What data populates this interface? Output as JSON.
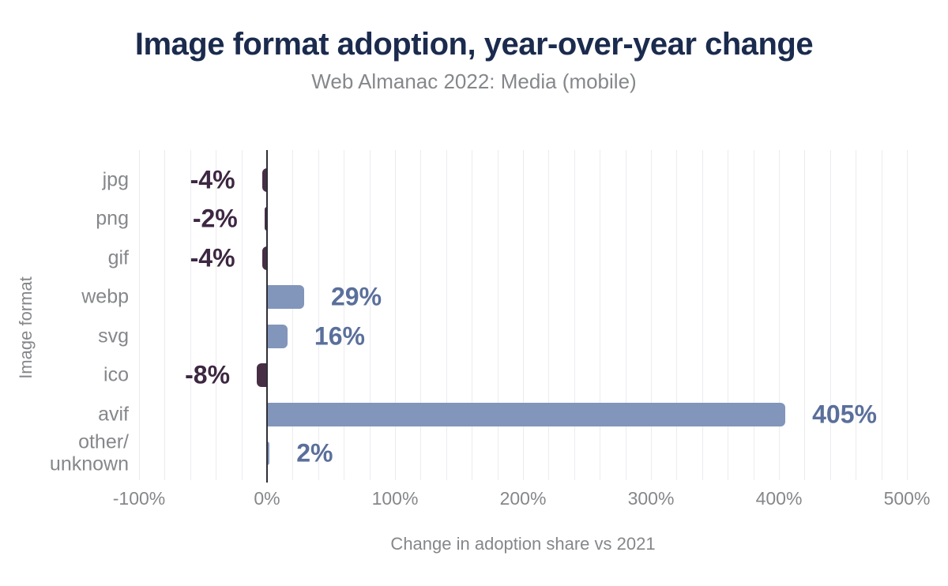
{
  "header": {
    "title": "Image format adoption, year-over-year change",
    "subtitle": "Web Almanac 2022: Media (mobile)"
  },
  "chart_data": {
    "type": "bar",
    "orientation": "horizontal",
    "title": "Image format adoption, year-over-year change",
    "subtitle": "Web Almanac 2022: Media (mobile)",
    "xlabel": "Change in adoption share vs 2021",
    "ylabel": "Image format",
    "categories": [
      "jpg",
      "png",
      "gif",
      "webp",
      "svg",
      "ico",
      "avif",
      "other/unknown"
    ],
    "category_display": [
      "jpg",
      "png",
      "gif",
      "webp",
      "svg",
      "ico",
      "avif",
      "other/\nunknown"
    ],
    "values": [
      -4,
      -2,
      -4,
      29,
      16,
      -8,
      405,
      2
    ],
    "value_labels": [
      "-4%",
      "-2%",
      "-4%",
      "29%",
      "16%",
      "-8%",
      "405%",
      "2%"
    ],
    "xlim": [
      -100,
      500
    ],
    "x_ticks": [
      -100,
      0,
      100,
      200,
      300,
      400,
      500
    ],
    "x_tick_labels": [
      "-100%",
      "0%",
      "100%",
      "200%",
      "300%",
      "400%",
      "500%"
    ],
    "gridline_step_pct": 20,
    "grid": true,
    "legend": "none",
    "colors": {
      "positive_bar": "#8295bb",
      "negative_bar": "#462f45",
      "positive_value_label": "#5a6f9b",
      "negative_value_label": "#3d2742",
      "title": "#1b2b4e",
      "subtitle": "#85878a",
      "axis_text": "#85878a",
      "gridline": "#ececef",
      "zero_axis": "#2f2f36",
      "background": "#ffffff"
    }
  }
}
